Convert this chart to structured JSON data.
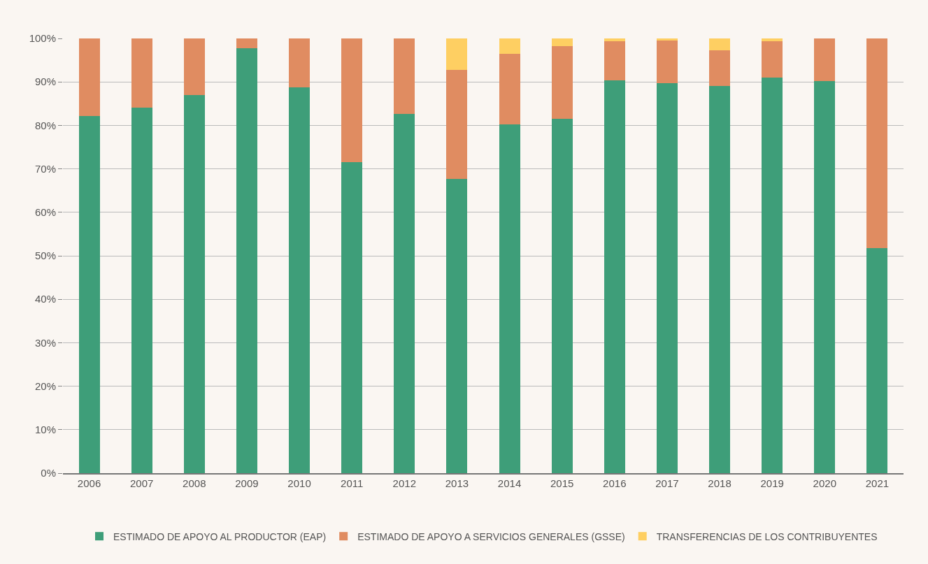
{
  "chart_data": {
    "type": "bar",
    "stacked": true,
    "categories": [
      "2006",
      "2007",
      "2008",
      "2009",
      "2010",
      "2011",
      "2012",
      "2013",
      "2014",
      "2015",
      "2016",
      "2017",
      "2018",
      "2019",
      "2020",
      "2021"
    ],
    "series": [
      {
        "name": "ESTIMADO DE APOYO AL PRODUCTOR (EAP)",
        "color": "#3e9e79",
        "values": [
          82.2,
          84.1,
          87.0,
          97.7,
          88.7,
          71.5,
          82.7,
          67.7,
          80.2,
          81.5,
          90.3,
          89.7,
          89.0,
          91.0,
          90.2,
          51.7
        ]
      },
      {
        "name": "ESTIMADO DE APOYO A SERVICIOS GENERALES (GSSE)",
        "color": "#e08c61",
        "values": [
          17.8,
          15.9,
          13.0,
          2.3,
          11.3,
          28.5,
          17.3,
          25.0,
          16.3,
          16.8,
          9.0,
          9.8,
          8.2,
          8.3,
          9.8,
          48.3
        ]
      },
      {
        "name": "TRANSFERENCIAS DE LOS CONTRIBUYENTES",
        "color": "#fecf62",
        "values": [
          0,
          0,
          0,
          0,
          0,
          0,
          0,
          7.3,
          3.5,
          1.7,
          0.7,
          0.5,
          2.8,
          0.7,
          0,
          0
        ]
      }
    ],
    "ylim": [
      0,
      100
    ],
    "yticks": [
      {
        "value": 0,
        "label": "0%"
      },
      {
        "value": 10,
        "label": "10%"
      },
      {
        "value": 20,
        "label": "20%"
      },
      {
        "value": 30,
        "label": "30%"
      },
      {
        "value": 40,
        "label": "40%"
      },
      {
        "value": 50,
        "label": "50%"
      },
      {
        "value": 60,
        "label": "60%"
      },
      {
        "value": 70,
        "label": "70%"
      },
      {
        "value": 80,
        "label": "80%"
      },
      {
        "value": 90,
        "label": "90%"
      },
      {
        "value": 100,
        "label": "100%"
      }
    ],
    "grid": "y",
    "legend": "bottom"
  }
}
